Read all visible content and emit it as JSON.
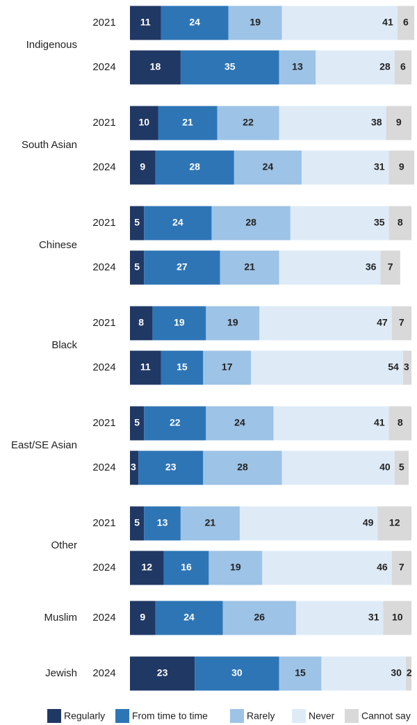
{
  "chart_data": {
    "type": "stacked-bar",
    "groups": [
      {
        "name": "Indigenous",
        "categories": [
          "2021",
          "2024"
        ]
      },
      {
        "name": "South Asian",
        "categories": [
          "2021",
          "2024"
        ]
      },
      {
        "name": "Chinese",
        "categories": [
          "2021",
          "2024"
        ]
      },
      {
        "name": "Black",
        "categories": [
          "2021",
          "2024"
        ]
      },
      {
        "name": "East/SE Asian",
        "categories": [
          "2021",
          "2024"
        ]
      },
      {
        "name": "Other",
        "categories": [
          "2021",
          "2024"
        ]
      },
      {
        "name": "Muslim",
        "categories": [
          "2024"
        ]
      },
      {
        "name": "Jewish",
        "categories": [
          "2024"
        ]
      }
    ],
    "xlim": [
      0,
      100
    ],
    "legend": "bottom",
    "series": [
      {
        "name": "Regularly",
        "color": "#203864",
        "values": [
          11,
          18,
          10,
          9,
          5,
          5,
          8,
          11,
          5,
          3,
          5,
          12,
          9,
          23
        ]
      },
      {
        "name": "From time to time",
        "color": "#2e75b6",
        "values": [
          24,
          35,
          21,
          28,
          24,
          27,
          19,
          15,
          22,
          23,
          13,
          16,
          24,
          30
        ]
      },
      {
        "name": "Rarely",
        "color": "#9dc3e6",
        "values": [
          19,
          13,
          22,
          24,
          28,
          21,
          19,
          17,
          24,
          28,
          21,
          19,
          26,
          15
        ]
      },
      {
        "name": "Never",
        "color": "#deebf7",
        "values": [
          41,
          28,
          38,
          31,
          35,
          36,
          47,
          54,
          41,
          40,
          49,
          46,
          31,
          30
        ]
      },
      {
        "name": "Cannot say",
        "color": "#d9d9d9",
        "values": [
          6,
          6,
          9,
          9,
          8,
          7,
          7,
          3,
          8,
          5,
          12,
          7,
          10,
          2
        ]
      }
    ]
  }
}
